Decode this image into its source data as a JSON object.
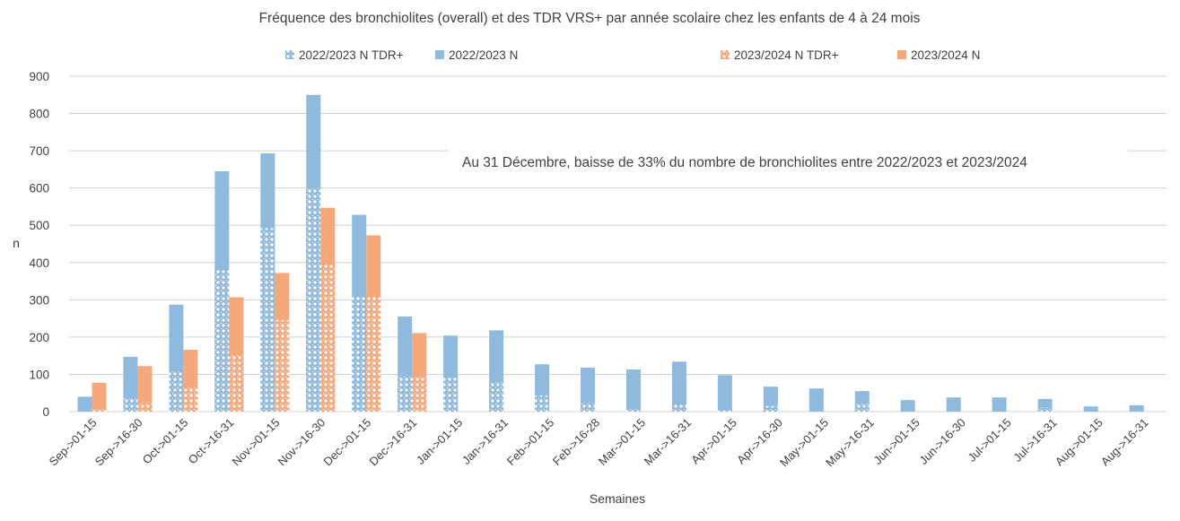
{
  "chart_data": {
    "type": "bar",
    "title": "Fréquence des bronchiolites (overall) et des TDR VRS+ par année scolaire chez les enfants de 4 à 24 mois",
    "xlabel": "Semaines",
    "ylabel": "n",
    "ylim": [
      0,
      900
    ],
    "yticks": [
      0,
      100,
      200,
      300,
      400,
      500,
      600,
      700,
      800,
      900
    ],
    "grid": true,
    "legend_position": "top",
    "annotation": "Au 31 Décembre, baisse de 33% du nombre de bronchiolites entre 2022/2023 et 2023/2024",
    "categories": [
      "Sep->01-15",
      "Sep->16-30",
      "Oct->01-15",
      "Oct->16-31",
      "Nov->01-15",
      "Nov->16-30",
      "Dec->01-15",
      "Dec->16-31",
      "Jan->01-15",
      "Jan->16-31",
      "Feb->01-15",
      "Feb->16-28",
      "Mar->01-15",
      "Mar->16-31",
      "Apr->01-15",
      "Apr->16-30",
      "May->01-15",
      "May->16-31",
      "Jun->01-15",
      "Jun->16-30",
      "Jul->01-15",
      "Jul->16-31",
      "Aug->01-15",
      "Aug->16-31"
    ],
    "series": [
      {
        "name": "2022/2023 N TDR+",
        "color": "#8fbade",
        "pattern": "hatched",
        "values": [
          0,
          40,
          111,
          380,
          492,
          600,
          308,
          98,
          92,
          79,
          43,
          26,
          9,
          19,
          3,
          15,
          0,
          24,
          0,
          0,
          0,
          12,
          0,
          0
        ]
      },
      {
        "name": "2022/2023 N",
        "color": "#8fbade",
        "pattern": "solid",
        "values": [
          40,
          147,
          287,
          645,
          693,
          850,
          528,
          255,
          204,
          218,
          127,
          118,
          113,
          134,
          98,
          67,
          62,
          55,
          31,
          38,
          38,
          34,
          14,
          17
        ]
      },
      {
        "name": "2023/2024 N TDR+",
        "color": "#f4a87c",
        "pattern": "hatched",
        "values": [
          10,
          26,
          66,
          153,
          246,
          394,
          308,
          94,
          null,
          null,
          null,
          null,
          null,
          null,
          null,
          null,
          null,
          null,
          null,
          null,
          null,
          null,
          null,
          null
        ]
      },
      {
        "name": "2023/2024 N",
        "color": "#f4a87c",
        "pattern": "solid",
        "values": [
          77,
          122,
          166,
          307,
          372,
          547,
          473,
          211,
          null,
          null,
          null,
          null,
          null,
          null,
          null,
          null,
          null,
          null,
          null,
          null,
          null,
          null,
          null,
          null
        ]
      }
    ]
  }
}
